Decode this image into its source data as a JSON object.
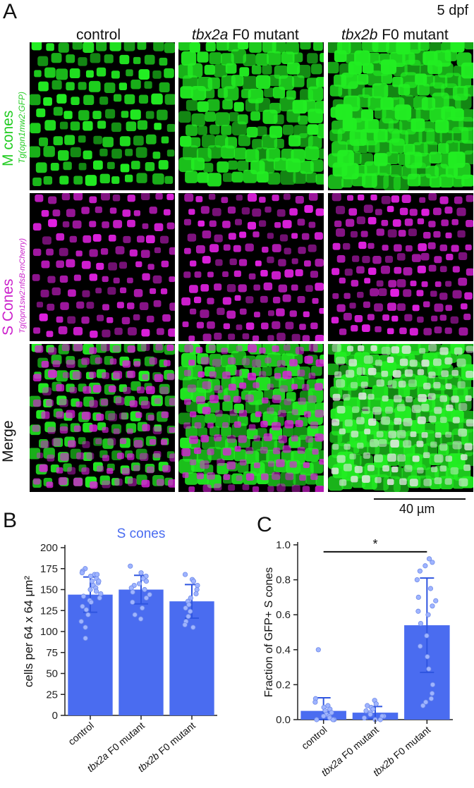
{
  "figure": {
    "panel_a_letter": "A",
    "stage": "5 dpf",
    "columns": [
      {
        "gene": "",
        "suffix": "control"
      },
      {
        "gene": "tbx2a",
        "suffix": " F0 mutant"
      },
      {
        "gene": "tbx2b",
        "suffix": " F0 mutant"
      }
    ],
    "rows": [
      {
        "main": "M cones",
        "sub": "Tg(opn1mw2:GFP)",
        "color": "#22cc22"
      },
      {
        "main": "S Cones",
        "sub": "Tg(opn1sw2:nfsB-mCherry)",
        "color": "#cc22cc"
      },
      {
        "main": "Merge",
        "sub": "",
        "color": "#111111"
      }
    ],
    "scale_bar_label": "40 µm",
    "panel_b_letter": "B",
    "panel_c_letter": "C",
    "colors": {
      "bar": "#4a6cf0",
      "error": "#2f55e0",
      "point": "#9fb4ff",
      "green": "#22ee22",
      "magenta": "#e020e0"
    }
  },
  "chart_data": [
    {
      "type": "bar",
      "title": "S cones",
      "ylabel": "cells per 64 x 64 μm²",
      "categories": [
        {
          "gene": "",
          "suffix": "control"
        },
        {
          "gene": "tbx2a",
          "suffix": " F0 mutant"
        },
        {
          "gene": "tbx2b",
          "suffix": " F0 mutant"
        }
      ],
      "values": [
        144,
        150,
        136
      ],
      "errors": [
        21,
        17,
        20
      ],
      "ylim": [
        0,
        200
      ],
      "yticks": [
        "0",
        "25",
        "50",
        "75",
        "100",
        "125",
        "150",
        "175",
        "200"
      ],
      "points": [
        [
          175,
          172,
          170,
          168,
          166,
          163,
          160,
          158,
          155,
          152,
          150,
          148,
          145,
          142,
          140,
          137,
          135,
          130,
          126,
          120,
          112,
          105,
          92,
          160,
          168
        ],
        [
          178,
          170,
          166,
          163,
          160,
          157,
          155,
          152,
          150,
          147,
          144,
          140,
          135,
          128,
          120,
          115
        ],
        [
          168,
          162,
          160,
          155,
          150,
          145,
          140,
          136,
          132,
          128,
          124,
          118,
          112,
          108,
          105
        ]
      ]
    },
    {
      "type": "bar",
      "title": "",
      "ylabel": "Fraction of GFP+ S cones",
      "categories": [
        {
          "gene": "",
          "suffix": "control"
        },
        {
          "gene": "tbx2a",
          "suffix": " F0 mutant"
        },
        {
          "gene": "tbx2b",
          "suffix": " F0 mutant"
        }
      ],
      "values": [
        0.05,
        0.04,
        0.54
      ],
      "errors": [
        0.075,
        0.035,
        0.27
      ],
      "ylim": [
        0,
        1.0
      ],
      "yticks": [
        "0.0",
        "0.2",
        "0.4",
        "0.6",
        "0.8",
        "1.0"
      ],
      "significance": {
        "from": 0,
        "to": 2,
        "y": 0.96,
        "label": "*"
      },
      "points": [
        [
          0.4,
          0.12,
          0.1,
          0.08,
          0.07,
          0.06,
          0.05,
          0.04,
          0.03,
          0.02,
          0.02,
          0.01,
          0.0,
          0.0,
          0.0
        ],
        [
          0.11,
          0.09,
          0.08,
          0.07,
          0.06,
          0.05,
          0.04,
          0.03,
          0.02,
          0.02,
          0.01,
          0.0,
          0.0
        ],
        [
          0.92,
          0.9,
          0.88,
          0.85,
          0.8,
          0.75,
          0.7,
          0.68,
          0.65,
          0.62,
          0.6,
          0.55,
          0.48,
          0.42,
          0.36,
          0.29,
          0.2,
          0.15,
          0.12,
          0.1,
          0.08
        ]
      ]
    }
  ]
}
